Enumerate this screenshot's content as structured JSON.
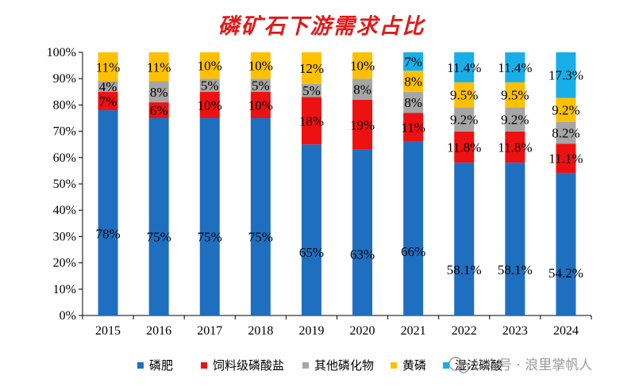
{
  "chart_data": {
    "type": "bar",
    "stacked": true,
    "title": "磷矿石下游需求占比",
    "categories": [
      "2015",
      "2016",
      "2017",
      "2018",
      "2019",
      "2020",
      "2021",
      "2022",
      "2023",
      "2024"
    ],
    "ylim": [
      0,
      100
    ],
    "yticks": [
      "0%",
      "10%",
      "20%",
      "30%",
      "40%",
      "50%",
      "60%",
      "70%",
      "80%",
      "90%",
      "100%"
    ],
    "legend_position": "bottom",
    "series": [
      {
        "name": "磷肥",
        "color": "#1f6fc0",
        "values": [
          78,
          75,
          75,
          75,
          65,
          63,
          66,
          58.1,
          58.1,
          54.2
        ],
        "labels": [
          "78%",
          "75%",
          "75%",
          "75%",
          "65%",
          "63%",
          "66%",
          "58.1%",
          "58.1%",
          "54.2%"
        ]
      },
      {
        "name": "饲料级磷酸盐",
        "color": "#ee1111",
        "values": [
          7,
          6,
          10,
          10,
          18,
          19,
          11,
          11.8,
          11.8,
          11.1
        ],
        "labels": [
          "7%",
          "6%",
          "10%",
          "10%",
          "18%",
          "19%",
          "11%",
          "11.8%",
          "11.8%",
          "11.1%"
        ]
      },
      {
        "name": "其他磷化物",
        "color": "#a6a6a6",
        "values": [
          4,
          8,
          5,
          5,
          5,
          8,
          8,
          9.2,
          9.2,
          8.2
        ],
        "labels": [
          "4%",
          "8%",
          "5%",
          "5%",
          "5%",
          "8%",
          "8%",
          "9.2%",
          "9.2%",
          "8.2%"
        ]
      },
      {
        "name": "黄磷",
        "color": "#ffc000",
        "values": [
          11,
          11,
          10,
          10,
          12,
          10,
          8,
          9.5,
          9.5,
          9.2
        ],
        "labels": [
          "11%",
          "11%",
          "10%",
          "10%",
          "12%",
          "10%",
          "8%",
          "9.5%",
          "9.5%",
          "9.2%"
        ]
      },
      {
        "name": "湿法磷酸",
        "color": "#18aee8",
        "values": [
          0,
          0,
          0,
          0,
          0,
          0,
          7,
          11.4,
          11.4,
          17.3
        ],
        "labels": [
          "",
          "",
          "",
          "",
          "",
          "",
          "7%",
          "11.4%",
          "11.4%",
          "17.3%"
        ]
      }
    ]
  },
  "watermark": "公众号 · 浪里掌帆人"
}
